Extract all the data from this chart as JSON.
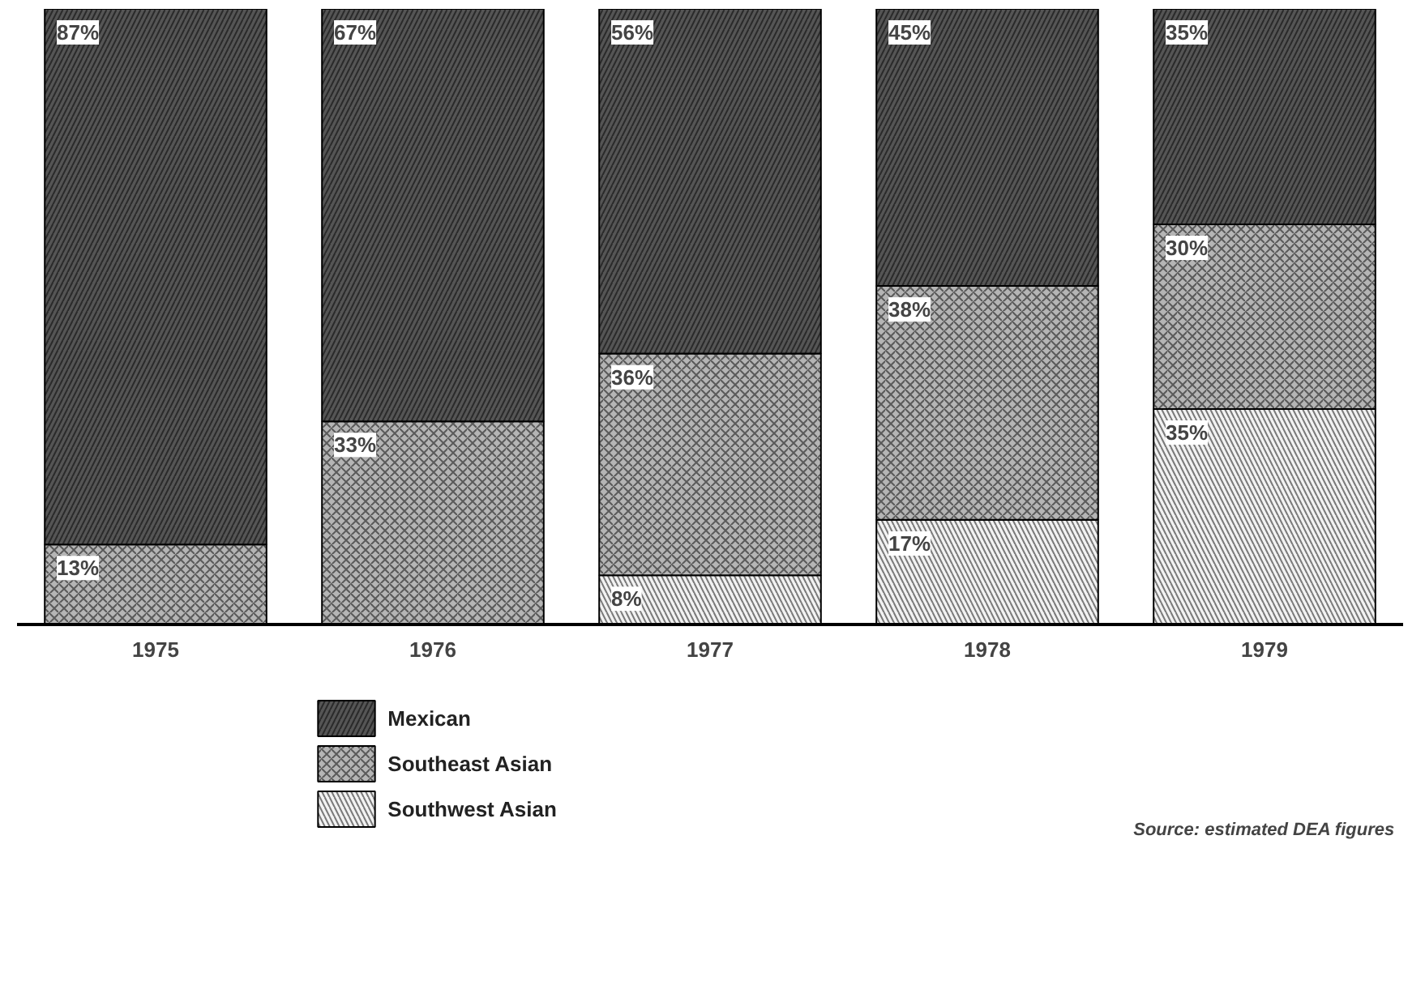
{
  "chart_data": {
    "type": "bar",
    "stacked": true,
    "categories": [
      "1975",
      "1976",
      "1977",
      "1978",
      "1979"
    ],
    "series": [
      {
        "name": "Southwest Asian",
        "color": "#f2f2f2",
        "values": [
          0,
          0,
          8,
          17,
          35
        ],
        "value_labels": [
          null,
          null,
          "8%",
          "17%",
          "35%"
        ]
      },
      {
        "name": "Southeast Asian",
        "color": "#b5b5b5",
        "values": [
          13,
          33,
          36,
          38,
          30
        ],
        "value_labels": [
          "13%",
          "33%",
          "36%",
          "38%",
          "30%"
        ]
      },
      {
        "name": "Mexican",
        "color": "#555555",
        "values": [
          87,
          67,
          56,
          45,
          35
        ],
        "value_labels": [
          "87%",
          "67%",
          "56%",
          "45%",
          "35%"
        ]
      }
    ],
    "legend": "bottom",
    "annotations": [
      "Source: estimated DEA figures"
    ]
  }
}
